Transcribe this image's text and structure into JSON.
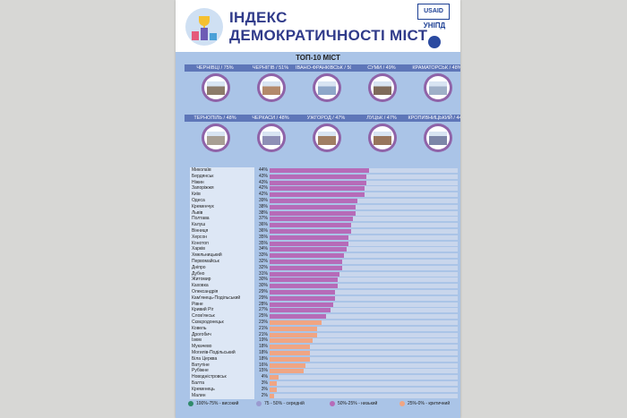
{
  "header": {
    "title_line1": "ІНДЕКС",
    "title_line2": "ДЕМОКРАТИЧНОСТІ МІСТ",
    "partner1": "USAID",
    "partner2": "УНІПД"
  },
  "top10": {
    "title": "ТОП-10 МІСТ",
    "cities": [
      {
        "label": "ЧЕРНІВЦІ / 75%"
      },
      {
        "label": "ЧЕРНІГІВ / 51%"
      },
      {
        "label": "ІВАНО-ФРАНКІВСЬК / 50%"
      },
      {
        "label": "СУМИ / 49%"
      },
      {
        "label": "КРАМАТОРСЬК / 48%"
      },
      {
        "label": "ТЕРНОПІЛЬ / 48%"
      },
      {
        "label": "ЧЕРКАСИ / 48%"
      },
      {
        "label": "УЖГОРОД / 47%"
      },
      {
        "label": "ЛУЦЬК / 47%"
      },
      {
        "label": "КРОПИВНИЦЬКИЙ / 44%"
      }
    ]
  },
  "chart_data": {
    "type": "bar",
    "orientation": "horizontal",
    "xlim": [
      0,
      75
    ],
    "categories": [
      "Миколаїв",
      "Бердянськ",
      "Ніжин",
      "Запоріжжя",
      "Київ",
      "Одеса",
      "Кременчук",
      "Львів",
      "Полтава",
      "Калуш",
      "Вінниця",
      "Херсон",
      "Конотоп",
      "Харків",
      "Хмельницький",
      "Первомайськ",
      "Дніпро",
      "Дубно",
      "Житомир",
      "Каховка",
      "Олександрія",
      "Кам'янець-Подільський",
      "Рівне",
      "Кривий Ріг",
      "Слов'янськ",
      "Сєвєродонецьк",
      "Ковель",
      "Дрогобич",
      "Ізюм",
      "Мукачево",
      "Могилів-Подільський",
      "Біла Церква",
      "Ватутіне",
      "Рубіжне",
      "Новодністровськ",
      "Балта",
      "Кременець",
      "Малин"
    ],
    "values": [
      44,
      43,
      43,
      42,
      42,
      39,
      38,
      38,
      37,
      36,
      36,
      35,
      35,
      34,
      33,
      32,
      32,
      31,
      30,
      30,
      29,
      29,
      28,
      27,
      25,
      23,
      21,
      21,
      19,
      18,
      18,
      18,
      16,
      15,
      4,
      3,
      3,
      2
    ],
    "labels": [
      "44%",
      "43%",
      "43%",
      "42%",
      "42%",
      "39%",
      "38%",
      "38%",
      "37%",
      "36%",
      "36%",
      "35%",
      "35%",
      "34%",
      "33%",
      "32%",
      "32%",
      "31%",
      "30%",
      "30%",
      "29%",
      "29%",
      "28%",
      "27%",
      "25%",
      "23%",
      "21%",
      "21%",
      "19%",
      "18%",
      "18%",
      "18%",
      "16%",
      "15%",
      "4%",
      "3%",
      "3%",
      "2%"
    ],
    "colors": {
      "high": "#2f8a6a",
      "above_mid": "#9a9ad0",
      "mid": "#b66bb8",
      "low": "#f0a583"
    },
    "legend": [
      {
        "label": "100%-75% - високий",
        "color": "#2f8a6a"
      },
      {
        "label": "75 - 50% - середній",
        "color": "#9a9ad0"
      },
      {
        "label": "50%-25% - низький",
        "color": "#b66bb8"
      },
      {
        "label": "25%-0% - критичний",
        "color": "#f0a583"
      }
    ]
  }
}
